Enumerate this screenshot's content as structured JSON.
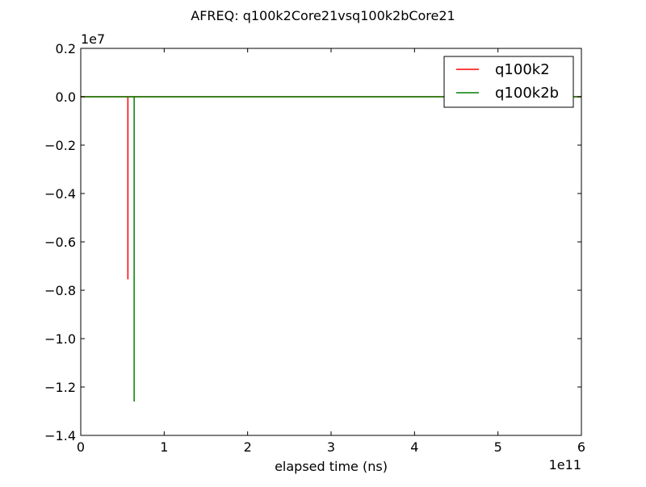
{
  "chart_data": {
    "type": "line",
    "title": "AFREQ: q100k2Core21vsq100k2bCore21",
    "xlabel": "elapsed time (ns)",
    "ylabel": "",
    "x_scale_label": "1e11",
    "y_scale_label": "1e7",
    "xlim": [
      0,
      600000000000
    ],
    "ylim": [
      -14000000,
      2000000
    ],
    "x_ticks": [
      0,
      100000000000,
      200000000000,
      300000000000,
      400000000000,
      500000000000,
      600000000000
    ],
    "x_tick_labels": [
      "0",
      "1",
      "2",
      "3",
      "4",
      "5",
      "6"
    ],
    "y_ticks": [
      2000000,
      0,
      -2000000,
      -4000000,
      -6000000,
      -8000000,
      -10000000,
      -12000000,
      -14000000
    ],
    "y_tick_labels": [
      "0.2",
      "0.0",
      "−0.2",
      "−0.4",
      "−0.6",
      "−0.8",
      "−1.0",
      "−1.2",
      "−1.4"
    ],
    "grid": false,
    "legend_position": "top-right",
    "series": [
      {
        "name": "q100k2",
        "color": "#ff0000",
        "points": [
          [
            0,
            0
          ],
          [
            56500000000,
            0
          ],
          [
            56500000000,
            -7550000.0
          ],
          [
            56500000000,
            0
          ],
          [
            600000000000,
            0
          ]
        ]
      },
      {
        "name": "q100k2b",
        "color": "#008000",
        "points": [
          [
            0,
            0
          ],
          [
            64000000000,
            0
          ],
          [
            64000000000,
            -12600000
          ],
          [
            64000000000,
            0
          ],
          [
            600000000000,
            0
          ]
        ]
      }
    ]
  }
}
